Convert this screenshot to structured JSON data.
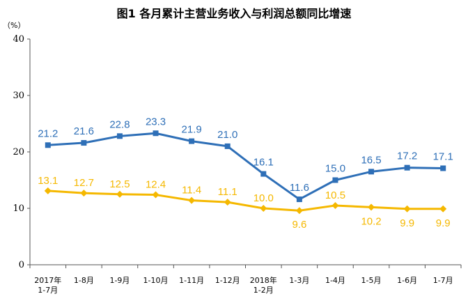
{
  "chart_data": {
    "type": "line",
    "title": "图1  各月累计主营业务收入与利润总额同比增速",
    "ylabel": "（%）",
    "ylim": [
      0,
      40
    ],
    "yticks": [
      "0",
      "10",
      "20",
      "30",
      "40"
    ],
    "grid": false,
    "categories": [
      [
        "2017年",
        "1-7月"
      ],
      [
        "1-8月"
      ],
      [
        "1-9月"
      ],
      [
        "1-10月"
      ],
      [
        "1-11月"
      ],
      [
        "1-12月"
      ],
      [
        "2018年",
        "1-2月"
      ],
      [
        "1-3月"
      ],
      [
        "1-4月"
      ],
      [
        "1-5月"
      ],
      [
        "1-6月"
      ],
      [
        "1-7月"
      ]
    ],
    "series": [
      {
        "color": "#2e6fb7",
        "marker": "square",
        "label_position": "above",
        "values": [
          21.2,
          21.6,
          22.8,
          23.3,
          21.9,
          21.0,
          16.1,
          11.6,
          15.0,
          16.5,
          17.2,
          17.1
        ],
        "labels": [
          "21.2",
          "21.6",
          "22.8",
          "23.3",
          "21.9",
          "21.0",
          "16.1",
          "11.6",
          "15.0",
          "16.5",
          "17.2",
          "17.1"
        ]
      },
      {
        "color": "#f5b800",
        "marker": "diamond",
        "label_position": "mixed",
        "values": [
          13.1,
          12.7,
          12.5,
          12.4,
          11.4,
          11.1,
          10.0,
          9.6,
          10.5,
          10.2,
          9.9,
          9.9
        ],
        "labels": [
          "13.1",
          "12.7",
          "12.5",
          "12.4",
          "11.4",
          "11.1",
          "10.0",
          "9.6",
          "10.5",
          "10.2",
          "9.9",
          "9.9"
        ]
      }
    ]
  }
}
